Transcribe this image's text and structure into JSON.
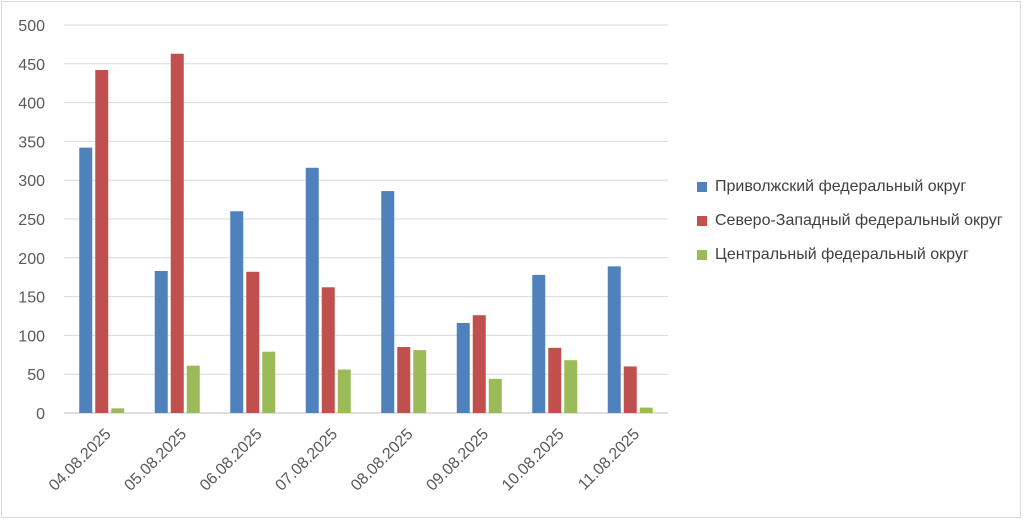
{
  "chart_data": {
    "type": "bar",
    "categories": [
      "04.08.2025",
      "05.08.2025",
      "06.08.2025",
      "07.08.2025",
      "08.08.2025",
      "09.08.2025",
      "10.08.2025",
      "11.08.2025"
    ],
    "series": [
      {
        "name": "Приволжский федеральный округ",
        "color": "#4f81bd",
        "values": [
          342,
          183,
          260,
          316,
          286,
          116,
          178,
          189
        ]
      },
      {
        "name": "Северо-Западный федеральный округ",
        "color": "#c0504d",
        "values": [
          442,
          463,
          182,
          162,
          85,
          126,
          84,
          60
        ]
      },
      {
        "name": "Центральный федеральный округ",
        "color": "#9bbb59",
        "values": [
          6,
          61,
          79,
          56,
          81,
          44,
          68,
          7
        ]
      }
    ],
    "ylim": [
      0,
      500
    ],
    "yticks": [
      "0",
      "50",
      "100",
      "150",
      "200",
      "250",
      "300",
      "350",
      "400",
      "450",
      "500"
    ],
    "grid": true,
    "legend_position": "right"
  }
}
